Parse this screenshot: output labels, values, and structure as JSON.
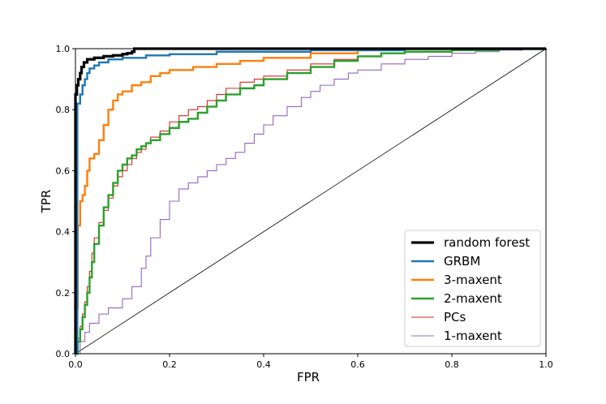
{
  "chart_data": {
    "type": "line",
    "title": "",
    "xlabel": "FPR",
    "ylabel": "TPR",
    "xlim": [
      0,
      1
    ],
    "ylim": [
      0,
      1
    ],
    "xticks": [
      "0.0",
      "0.2",
      "0.4",
      "0.6",
      "0.8",
      "1.0"
    ],
    "yticks": [
      "0.0",
      "0.2",
      "0.4",
      "0.6",
      "0.8",
      "1.0"
    ],
    "grid": false,
    "legend_position": "lower-right",
    "diagonal": {
      "x": [
        0,
        1
      ],
      "y": [
        0,
        1
      ],
      "color": "#000000"
    },
    "series": [
      {
        "name": "random forest",
        "color": "#000000",
        "x": [
          0,
          0,
          0.003,
          0.006,
          0.01,
          0.013,
          0.018,
          0.025,
          0.04,
          0.06,
          0.08,
          0.1,
          0.11,
          0.12,
          0.125,
          1.0
        ],
        "y": [
          0,
          0.85,
          0.88,
          0.9,
          0.92,
          0.94,
          0.955,
          0.965,
          0.97,
          0.975,
          0.978,
          0.982,
          0.985,
          0.99,
          1.0,
          1.0
        ]
      },
      {
        "name": "GRBM",
        "color": "#1f77b4",
        "x": [
          0,
          0.004,
          0.004,
          0.01,
          0.015,
          0.02,
          0.025,
          0.03,
          0.04,
          0.05,
          0.07,
          0.1,
          0.15,
          0.2,
          0.3,
          0.5,
          0.7,
          1.0
        ],
        "y": [
          0,
          0.78,
          0.82,
          0.85,
          0.88,
          0.9,
          0.92,
          0.935,
          0.945,
          0.955,
          0.965,
          0.97,
          0.978,
          0.982,
          0.99,
          0.995,
          0.999,
          1.0
        ]
      },
      {
        "name": "3-maxent",
        "color": "#ff7f0e",
        "x": [
          0,
          0,
          0.005,
          0.005,
          0.01,
          0.015,
          0.02,
          0.025,
          0.03,
          0.04,
          0.05,
          0.06,
          0.07,
          0.08,
          0.09,
          0.1,
          0.12,
          0.14,
          0.16,
          0.18,
          0.2,
          0.25,
          0.3,
          0.35,
          0.4,
          0.5,
          0.6,
          0.65,
          1.0
        ],
        "y": [
          0,
          0.15,
          0.2,
          0.42,
          0.5,
          0.52,
          0.55,
          0.6,
          0.64,
          0.655,
          0.7,
          0.75,
          0.8,
          0.83,
          0.85,
          0.86,
          0.88,
          0.89,
          0.91,
          0.92,
          0.93,
          0.94,
          0.95,
          0.96,
          0.97,
          0.985,
          0.995,
          1.0,
          1.0
        ]
      },
      {
        "name": "2-maxent",
        "color": "#2ca02c",
        "x": [
          0,
          0.005,
          0.01,
          0.015,
          0.02,
          0.025,
          0.03,
          0.035,
          0.04,
          0.05,
          0.06,
          0.07,
          0.08,
          0.09,
          0.1,
          0.11,
          0.12,
          0.13,
          0.14,
          0.15,
          0.16,
          0.18,
          0.2,
          0.22,
          0.24,
          0.26,
          0.28,
          0.3,
          0.32,
          0.35,
          0.38,
          0.4,
          0.45,
          0.5,
          0.55,
          0.6,
          0.65,
          0.7,
          0.8,
          0.9,
          1.0
        ],
        "y": [
          0,
          0.04,
          0.08,
          0.12,
          0.16,
          0.2,
          0.25,
          0.3,
          0.36,
          0.42,
          0.48,
          0.52,
          0.56,
          0.6,
          0.62,
          0.64,
          0.65,
          0.67,
          0.68,
          0.69,
          0.7,
          0.72,
          0.74,
          0.76,
          0.77,
          0.79,
          0.81,
          0.83,
          0.85,
          0.87,
          0.88,
          0.9,
          0.92,
          0.94,
          0.96,
          0.975,
          0.985,
          0.99,
          0.995,
          1.0,
          1.0
        ]
      },
      {
        "name": "PCs",
        "color": "#d62728",
        "x": [
          0,
          0.005,
          0.01,
          0.015,
          0.02,
          0.025,
          0.03,
          0.035,
          0.04,
          0.05,
          0.06,
          0.07,
          0.08,
          0.09,
          0.1,
          0.11,
          0.12,
          0.13,
          0.14,
          0.15,
          0.16,
          0.18,
          0.2,
          0.22,
          0.24,
          0.26,
          0.28,
          0.3,
          0.32,
          0.35,
          0.38,
          0.4,
          0.45,
          0.5,
          0.55,
          0.6,
          0.65,
          0.7,
          0.8,
          0.9,
          1.0
        ],
        "y": [
          0,
          0.05,
          0.09,
          0.13,
          0.17,
          0.22,
          0.27,
          0.33,
          0.38,
          0.43,
          0.47,
          0.51,
          0.55,
          0.58,
          0.6,
          0.62,
          0.64,
          0.66,
          0.67,
          0.69,
          0.71,
          0.73,
          0.76,
          0.78,
          0.8,
          0.81,
          0.83,
          0.85,
          0.87,
          0.89,
          0.9,
          0.91,
          0.93,
          0.95,
          0.965,
          0.975,
          0.985,
          0.99,
          0.995,
          1.0,
          1.0
        ]
      },
      {
        "name": "1-maxent",
        "color": "#9467bd",
        "x": [
          0,
          0.01,
          0.02,
          0.03,
          0.05,
          0.07,
          0.1,
          0.12,
          0.14,
          0.15,
          0.16,
          0.18,
          0.2,
          0.22,
          0.24,
          0.26,
          0.28,
          0.3,
          0.32,
          0.34,
          0.36,
          0.38,
          0.4,
          0.42,
          0.45,
          0.48,
          0.5,
          0.52,
          0.55,
          0.58,
          0.6,
          0.65,
          0.7,
          0.75,
          0.8,
          0.85,
          0.9,
          0.95,
          1.0
        ],
        "y": [
          0,
          0.04,
          0.07,
          0.1,
          0.13,
          0.15,
          0.18,
          0.22,
          0.28,
          0.32,
          0.38,
          0.44,
          0.5,
          0.54,
          0.56,
          0.58,
          0.6,
          0.62,
          0.64,
          0.66,
          0.69,
          0.72,
          0.75,
          0.78,
          0.81,
          0.84,
          0.86,
          0.88,
          0.9,
          0.92,
          0.93,
          0.95,
          0.965,
          0.975,
          0.985,
          0.99,
          0.995,
          0.998,
          1.0
        ]
      }
    ]
  }
}
